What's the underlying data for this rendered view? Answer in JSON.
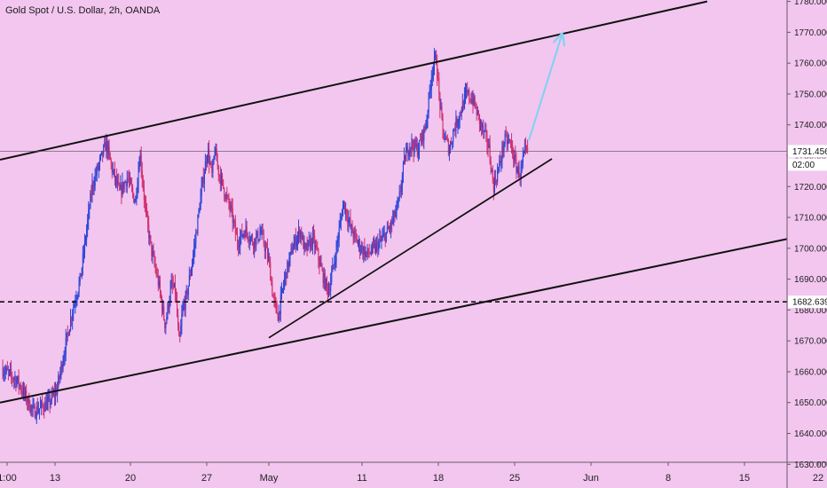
{
  "chart_title": "Gold Spot / U.S. Dollar, 2h, OANDA",
  "colors": {
    "background": "#f2c6ef",
    "up_candle": "#2b45d6",
    "down_candle": "#d12f6e",
    "trendline": "#111111",
    "arrow": "#7fd3ef",
    "axis_text": "#222222",
    "badge_bg": "#ffffff"
  },
  "chart_data": {
    "type": "candlestick",
    "title": "Gold Spot / U.S. Dollar, 2h, OANDA",
    "ylim": [
      1630,
      1780
    ],
    "y_ticks": [
      "1630.000",
      "1640.000",
      "1650.000",
      "1660.000",
      "1670.000",
      "1680.000",
      "1690.000",
      "1700.000",
      "1710.000",
      "1720.000",
      "1730.000",
      "1740.000",
      "1750.000",
      "1760.000",
      "1770.000",
      "1780.000"
    ],
    "x_ticks": [
      "1:00",
      "13",
      "20",
      "27",
      "May",
      "11",
      "18",
      "25",
      "Jun",
      "8",
      "15",
      "22"
    ],
    "current_price_label": "1731.456",
    "countdown_label": "02:00",
    "horizontal_level_label": "1682.639",
    "price_path": [
      [
        0,
        1661
      ],
      [
        2,
        1657
      ],
      [
        4,
        1647
      ],
      [
        6,
        1650
      ],
      [
        7,
        1654
      ],
      [
        9,
        1680
      ],
      [
        10,
        1690
      ],
      [
        11.5,
        1720
      ],
      [
        12.5,
        1728
      ],
      [
        13.3,
        1734
      ],
      [
        14,
        1726
      ],
      [
        15,
        1718
      ],
      [
        16,
        1723
      ],
      [
        17,
        1715
      ],
      [
        17.6,
        1731
      ],
      [
        18.3,
        1712
      ],
      [
        19,
        1700
      ],
      [
        20,
        1688
      ],
      [
        20.8,
        1675
      ],
      [
        21.6,
        1688
      ],
      [
        22.1,
        1686
      ],
      [
        22.6,
        1668
      ],
      [
        23,
        1680
      ],
      [
        23.5,
        1684
      ],
      [
        24.5,
        1700
      ],
      [
        25.5,
        1720
      ],
      [
        26.2,
        1732
      ],
      [
        26.8,
        1723
      ],
      [
        27.1,
        1732
      ],
      [
        27.6,
        1725
      ],
      [
        28.4,
        1718
      ],
      [
        29.2,
        1712
      ],
      [
        30,
        1702
      ],
      [
        31,
        1706
      ],
      [
        32,
        1702
      ],
      [
        33,
        1705
      ],
      [
        34,
        1696
      ],
      [
        34.6,
        1683
      ],
      [
        35.2,
        1678
      ],
      [
        36,
        1690
      ],
      [
        37,
        1700
      ],
      [
        38,
        1706
      ],
      [
        38.6,
        1699
      ],
      [
        39.6,
        1703
      ],
      [
        40.2,
        1698
      ],
      [
        41,
        1690
      ],
      [
        41.6,
        1686
      ],
      [
        42.5,
        1698
      ],
      [
        43.5,
        1715
      ],
      [
        44.5,
        1706
      ],
      [
        45.5,
        1701
      ],
      [
        46.5,
        1698
      ],
      [
        47.5,
        1700
      ],
      [
        48.5,
        1703
      ],
      [
        49.5,
        1707
      ],
      [
        50.5,
        1714
      ],
      [
        51.3,
        1729
      ],
      [
        52,
        1734
      ],
      [
        53,
        1732
      ],
      [
        54,
        1740
      ],
      [
        54.8,
        1758
      ],
      [
        55.3,
        1762
      ],
      [
        55.7,
        1749
      ],
      [
        56.2,
        1737
      ],
      [
        57,
        1732
      ],
      [
        57.5,
        1738
      ],
      [
        58.5,
        1745
      ],
      [
        59.2,
        1750
      ],
      [
        60,
        1748
      ],
      [
        61,
        1740
      ],
      [
        62,
        1733
      ],
      [
        62.6,
        1720
      ],
      [
        63.3,
        1726
      ],
      [
        64,
        1735
      ],
      [
        64.8,
        1734
      ],
      [
        65.4,
        1727
      ],
      [
        66,
        1724
      ],
      [
        66.6,
        1731
      ],
      [
        67,
        1731
      ]
    ],
    "annotations": {
      "upper_channel_line": {
        "from": [
          "1:00",
          1731
        ],
        "to": [
          "Jun 8",
          1780
        ]
      },
      "lower_channel_line": {
        "from": [
          "1:00",
          1650
        ],
        "to": [
          "Jun 22",
          1703
        ]
      },
      "rising_trendline": {
        "from": [
          "May",
          1671
        ],
        "to": [
          "May 27",
          1729
        ]
      },
      "arrow_target": {
        "from": [
          "May 25",
          1735
        ],
        "to": [
          "May 27",
          1769
        ]
      }
    }
  }
}
